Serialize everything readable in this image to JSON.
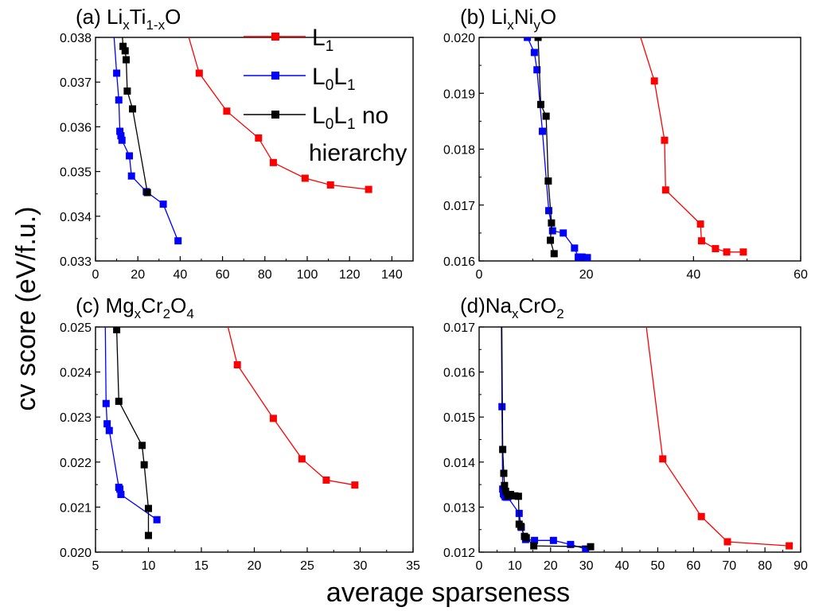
{
  "figure": {
    "ylabel": "cv score (eV/f.u.)",
    "xlabel": "average sparseness",
    "legend": {
      "placement": "top-center",
      "entries": [
        {
          "series": "L1",
          "main": "L",
          "sub": "1",
          "rest": ""
        },
        {
          "series": "L0L1",
          "main": "L",
          "sub": "0",
          "main2": "L",
          "sub2": "1",
          "rest": ""
        },
        {
          "series": "L0L1 no hierarchy",
          "main": "L",
          "sub": "0",
          "main2": "L",
          "sub2": "1",
          "rest": " no",
          "line2": "hierarchy"
        }
      ]
    }
  },
  "colors": {
    "L1": "#ff0000",
    "L0L1": "#0000ff",
    "L0L1 no hierarchy": "#000000"
  },
  "chart_data": [
    {
      "type": "line",
      "title": "(a) LixTi1-xO",
      "title_parts": [
        {
          "t": "(a) Li"
        },
        {
          "t": "x",
          "sub": true
        },
        {
          "t": "Ti"
        },
        {
          "t": "1-x",
          "sub": true
        },
        {
          "t": "O"
        }
      ],
      "xlim": [
        0,
        150
      ],
      "ylim": [
        0.033,
        0.038
      ],
      "xticks": [
        0,
        20,
        40,
        60,
        80,
        100,
        120,
        140
      ],
      "yticks": [
        "0.033",
        "0.034",
        "0.035",
        "0.036",
        "0.037",
        "0.038"
      ],
      "grid": false,
      "series": [
        {
          "name": "L1",
          "x": [
            41,
            49,
            62,
            77,
            84,
            99,
            111,
            129
          ],
          "y": [
            0.0385,
            0.0372,
            0.03635,
            0.03575,
            0.0352,
            0.03485,
            0.0347,
            0.0346
          ]
        },
        {
          "name": "L0L1",
          "x": [
            8,
            10,
            11,
            11.5,
            12,
            12.5,
            16,
            17,
            24,
            32,
            39
          ],
          "y": [
            0.0385,
            0.0372,
            0.0366,
            0.0359,
            0.0358,
            0.0357,
            0.03535,
            0.0349,
            0.03455,
            0.03427,
            0.03345
          ]
        },
        {
          "name": "L0L1 no hierarchy",
          "x": [
            12,
            13,
            14,
            14.5,
            15,
            17.5,
            24.5
          ],
          "y": [
            0.0385,
            0.0378,
            0.0377,
            0.0375,
            0.0368,
            0.0364,
            0.03453
          ]
        }
      ]
    },
    {
      "type": "line",
      "title": "(b) LixNiyO",
      "title_parts": [
        {
          "t": "(b) Li"
        },
        {
          "t": "x",
          "sub": true
        },
        {
          "t": "Ni"
        },
        {
          "t": "y",
          "sub": true
        },
        {
          "t": "O"
        }
      ],
      "xlim": [
        0,
        60
      ],
      "ylim": [
        0.016,
        0.02
      ],
      "xticks": [
        0,
        20,
        40,
        60
      ],
      "yticks": [
        "0.016",
        "0.017",
        "0.018",
        "0.019",
        "0.020"
      ],
      "grid": false,
      "series": [
        {
          "name": "L1",
          "x": [
            29.8,
            32.7,
            34.6,
            34.8,
            41.3,
            41.5,
            44.1,
            46.2,
            49.3
          ],
          "y": [
            0.0201,
            0.01922,
            0.01816,
            0.01727,
            0.01666,
            0.01636,
            0.01622,
            0.01616,
            0.01616
          ]
        },
        {
          "name": "L0L1",
          "x": [
            9,
            10.3,
            10.8,
            11.8,
            13,
            13.7,
            15.7,
            17.8,
            18.5,
            19.2,
            20.2
          ],
          "y": [
            0.02,
            0.01973,
            0.01942,
            0.01832,
            0.0169,
            0.01654,
            0.0165,
            0.01623,
            0.01607,
            0.01607,
            0.01606
          ]
        },
        {
          "name": "L0L1 no hierarchy",
          "x": [
            11,
            11.5,
            12.5,
            12.9,
            13.5,
            13.3,
            14
          ],
          "y": [
            0.02,
            0.0188,
            0.01859,
            0.01743,
            0.01668,
            0.01637,
            0.01613
          ]
        }
      ]
    },
    {
      "type": "line",
      "title": "(c) MgxCr2O4",
      "title_parts": [
        {
          "t": "(c) Mg"
        },
        {
          "t": "x",
          "sub": true
        },
        {
          "t": "Cr"
        },
        {
          "t": "2",
          "sub": true
        },
        {
          "t": "O"
        },
        {
          "t": "4",
          "sub": true
        }
      ],
      "xlim": [
        5,
        35
      ],
      "ylim": [
        0.02,
        0.025
      ],
      "xticks": [
        5,
        10,
        15,
        20,
        25,
        30,
        35
      ],
      "yticks": [
        "0.020",
        "0.021",
        "0.022",
        "0.023",
        "0.024",
        "0.025"
      ],
      "grid": false,
      "series": [
        {
          "name": "L1",
          "x": [
            17.2,
            18.4,
            21.8,
            24.5,
            26.8,
            29.5
          ],
          "y": [
            0.0253,
            0.02416,
            0.02297,
            0.02207,
            0.0216,
            0.02149
          ]
        },
        {
          "name": "L0L1",
          "x": [
            5.9,
            6,
            6.1,
            6.3,
            7.2,
            7.3,
            7.4,
            10.8
          ],
          "y": [
            0.0255,
            0.0233,
            0.02285,
            0.0227,
            0.02144,
            0.0214,
            0.02128,
            0.02072
          ]
        },
        {
          "name": "L0L1 no hierarchy",
          "x": [
            7,
            7.2,
            9.4,
            9.6,
            10,
            10
          ],
          "y": [
            0.02494,
            0.02335,
            0.02237,
            0.02194,
            0.02097,
            0.02037
          ]
        }
      ]
    },
    {
      "type": "line",
      "title": "(d)NaxCrO2",
      "title_parts": [
        {
          "t": "(d)Na"
        },
        {
          "t": "x",
          "sub": true
        },
        {
          "t": "CrO"
        },
        {
          "t": "2",
          "sub": true
        }
      ],
      "xlim": [
        0,
        90
      ],
      "ylim": [
        0.012,
        0.017
      ],
      "xticks": [
        0,
        10,
        20,
        30,
        40,
        50,
        60,
        70,
        80,
        90
      ],
      "yticks": [
        "0.012",
        "0.013",
        "0.014",
        "0.015",
        "0.016",
        "0.017"
      ],
      "grid": false,
      "series": [
        {
          "name": "L1",
          "x": [
            46.5,
            51.4,
            62.2,
            69.5,
            86.8
          ],
          "y": [
            0.0172,
            0.01407,
            0.01279,
            0.01223,
            0.01214
          ]
        },
        {
          "name": "L0L1",
          "x": [
            6.2,
            6.4,
            6.6,
            6.8,
            7,
            7.3,
            7.6,
            8,
            11.2,
            11.8,
            13,
            15.5,
            20.8,
            25.6,
            29.8
          ],
          "y": [
            0.0175,
            0.01523,
            0.0134,
            0.0133,
            0.01327,
            0.01323,
            0.01322,
            0.01322,
            0.01286,
            0.01255,
            0.01228,
            0.01226,
            0.01226,
            0.01217,
            0.01207
          ]
        },
        {
          "name": "L0L1 no hierarchy",
          "x": [
            6.3,
            6.6,
            6.9,
            7.1,
            7.4,
            8,
            8.8,
            10,
            11,
            11.2,
            11.7,
            12.7,
            13.2,
            15.3,
            31.2
          ],
          "y": [
            0.0175,
            0.01428,
            0.01375,
            0.01348,
            0.01335,
            0.01325,
            0.01328,
            0.01325,
            0.01324,
            0.01262,
            0.01257,
            0.01235,
            0.01232,
            0.01214,
            0.01212
          ]
        }
      ]
    }
  ]
}
